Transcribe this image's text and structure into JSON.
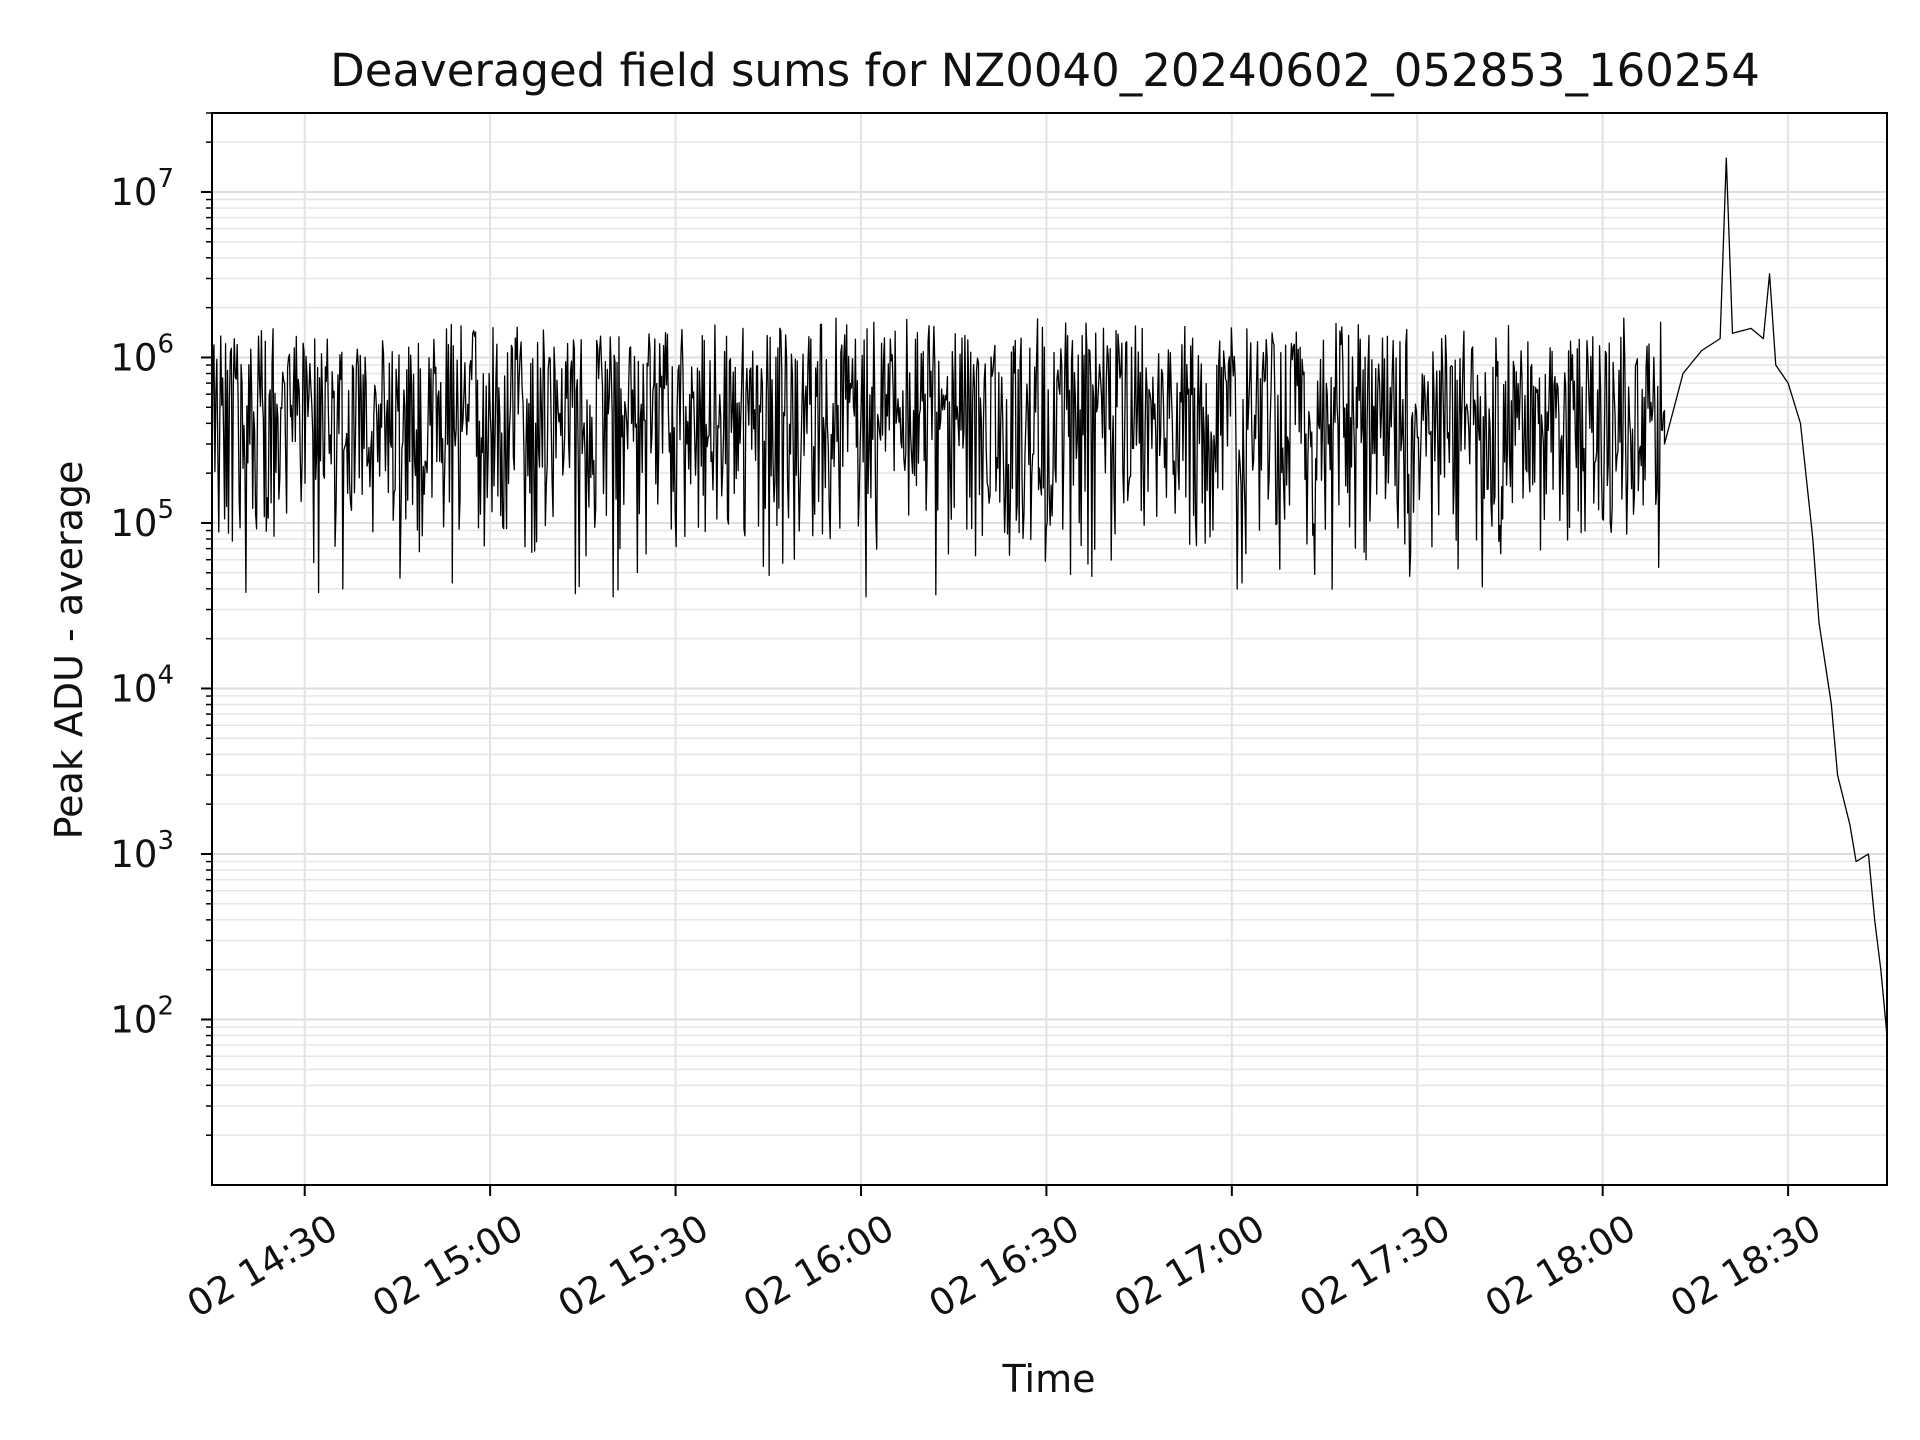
{
  "chart_data": {
    "type": "line",
    "title": "Deaveraged field sums for NZ0040_20240602_052853_160254",
    "xlabel": "Time",
    "ylabel": "Peak ADU - average",
    "yscale": "log",
    "ylim": [
      10,
      30000000
    ],
    "xlim": [
      "2024-06-02 14:15",
      "2024-06-02 18:46"
    ],
    "grid": true,
    "x_ticks": [
      {
        "time": "2024-06-02 14:30",
        "label": "02 14:30"
      },
      {
        "time": "2024-06-02 15:00",
        "label": "02 15:00"
      },
      {
        "time": "2024-06-02 15:30",
        "label": "02 15:30"
      },
      {
        "time": "2024-06-02 16:00",
        "label": "02 16:00"
      },
      {
        "time": "2024-06-02 16:30",
        "label": "02 16:30"
      },
      {
        "time": "2024-06-02 17:00",
        "label": "02 17:00"
      },
      {
        "time": "2024-06-02 17:30",
        "label": "02 17:30"
      },
      {
        "time": "2024-06-02 18:00",
        "label": "02 18:00"
      },
      {
        "time": "2024-06-02 18:30",
        "label": "02 18:30"
      }
    ],
    "y_ticks": [
      {
        "value": 100,
        "base": "10",
        "exp": "2"
      },
      {
        "value": 1000,
        "base": "10",
        "exp": "3"
      },
      {
        "value": 10000,
        "base": "10",
        "exp": "4"
      },
      {
        "value": 100000,
        "base": "10",
        "exp": "5"
      },
      {
        "value": 1000000,
        "base": "10",
        "exp": "6"
      },
      {
        "value": 10000000,
        "base": "10",
        "exp": "7"
      }
    ],
    "series_style": {
      "color": "#000000"
    },
    "series": [
      {
        "description": "approximate envelope of the dense noisy trace; the original contains thousands of samples oscillating between the low and high envelopes",
        "noisy_segment": {
          "x_start": "2024-06-02 14:15",
          "x_end": "2024-06-02 18:10",
          "low_envelope": 55000,
          "high_envelope": 1400000
        },
        "points": [
          {
            "x": "2024-06-02 18:10",
            "y": 300000
          },
          {
            "x": "2024-06-02 18:13",
            "y": 800000
          },
          {
            "x": "2024-06-02 18:16",
            "y": 1100000
          },
          {
            "x": "2024-06-02 18:19",
            "y": 1300000
          },
          {
            "x": "2024-06-02 18:20",
            "y": 16000000
          },
          {
            "x": "2024-06-02 18:21",
            "y": 1400000
          },
          {
            "x": "2024-06-02 18:24",
            "y": 1500000
          },
          {
            "x": "2024-06-02 18:26",
            "y": 1300000
          },
          {
            "x": "2024-06-02 18:27",
            "y": 3200000
          },
          {
            "x": "2024-06-02 18:28",
            "y": 900000
          },
          {
            "x": "2024-06-02 18:30",
            "y": 700000
          },
          {
            "x": "2024-06-02 18:32",
            "y": 400000
          },
          {
            "x": "2024-06-02 18:34",
            "y": 80000
          },
          {
            "x": "2024-06-02 18:35",
            "y": 25000
          },
          {
            "x": "2024-06-02 18:37",
            "y": 8000
          },
          {
            "x": "2024-06-02 18:38",
            "y": 3000
          },
          {
            "x": "2024-06-02 18:40",
            "y": 1500
          },
          {
            "x": "2024-06-02 18:41",
            "y": 900
          },
          {
            "x": "2024-06-02 18:43",
            "y": 1000
          },
          {
            "x": "2024-06-02 18:44",
            "y": 400
          },
          {
            "x": "2024-06-02 18:45",
            "y": 200
          },
          {
            "x": "2024-06-02 18:46",
            "y": 80
          }
        ]
      }
    ]
  }
}
